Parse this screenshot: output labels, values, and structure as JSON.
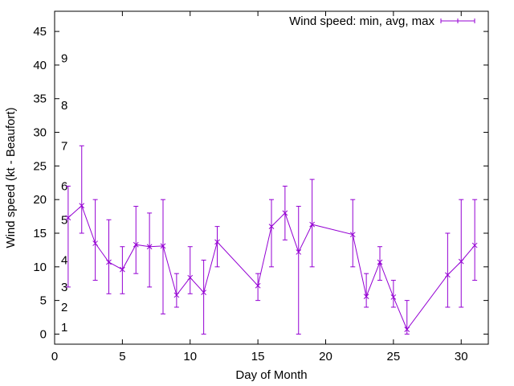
{
  "chart_data": {
    "type": "line",
    "title": "",
    "xlabel": "Day of Month",
    "ylabel": "Wind speed (kt - Beaufort)",
    "xlim": [
      0,
      32
    ],
    "ylim": [
      -1.5,
      48
    ],
    "xticks": [
      0,
      5,
      10,
      15,
      20,
      25,
      30
    ],
    "yticks": [
      0,
      5,
      10,
      15,
      20,
      25,
      30,
      35,
      40,
      45
    ],
    "grid": false,
    "legend_position": "top-right",
    "series_color": "#9400D3",
    "series": [
      {
        "name": "Wind speed: min, avg, max",
        "style": "errorbars with line",
        "x": [
          1,
          2,
          3,
          4,
          5,
          6,
          7,
          8,
          9,
          10,
          11,
          12,
          15,
          16,
          17,
          18,
          19,
          22,
          23,
          24,
          25,
          26,
          29,
          30,
          31
        ],
        "min": [
          7,
          15,
          8,
          6,
          6,
          9,
          7,
          3,
          4,
          6,
          0,
          10,
          5,
          10,
          14,
          0,
          10,
          10,
          4,
          8,
          4,
          0,
          4,
          4,
          8
        ],
        "avg": [
          17.3,
          19.1,
          13.5,
          10.7,
          9.6,
          13.3,
          13.0,
          13.1,
          5.8,
          8.4,
          6.2,
          13.7,
          7.2,
          16.0,
          18.0,
          12.2,
          16.3,
          14.8,
          5.6,
          10.7,
          5.5,
          0.7,
          8.8,
          10.8,
          13.2
        ],
        "max": [
          22,
          28,
          20,
          17,
          13,
          19,
          18,
          20,
          9,
          13,
          11,
          16,
          9,
          20,
          22,
          19,
          23,
          20,
          9,
          13,
          8,
          5,
          15,
          20,
          20
        ]
      }
    ],
    "beaufort_labels": [
      {
        "text": "1",
        "y": 1
      },
      {
        "text": "2",
        "y": 4
      },
      {
        "text": "3",
        "y": 7
      },
      {
        "text": "4",
        "y": 11
      },
      {
        "text": "5",
        "y": 17
      },
      {
        "text": "6",
        "y": 22
      },
      {
        "text": "7",
        "y": 28
      },
      {
        "text": "8",
        "y": 34
      },
      {
        "text": "9",
        "y": 41
      }
    ]
  }
}
